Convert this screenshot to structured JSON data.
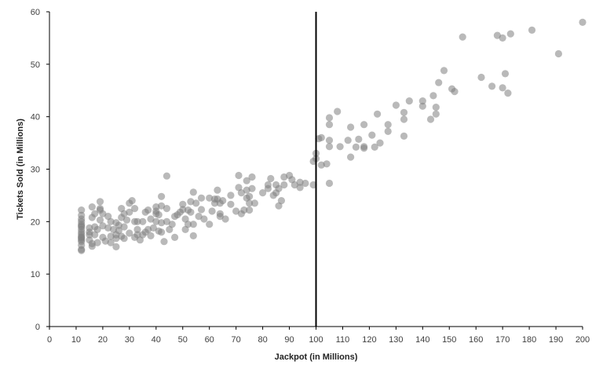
{
  "chart_data": {
    "type": "scatter",
    "title": "",
    "xlabel": "Jackpot (in Millions)",
    "ylabel": "Tickets Sold (in Millions)",
    "xlim": [
      0,
      200
    ],
    "ylim": [
      0,
      60
    ],
    "x_ticks": [
      "0",
      "10",
      "20",
      "30",
      "40",
      "50",
      "60",
      "70",
      "80",
      "90",
      "100",
      "110",
      "120",
      "130",
      "140",
      "150",
      "160",
      "170",
      "180",
      "190",
      "200"
    ],
    "y_ticks": [
      "0",
      "10",
      "20",
      "30",
      "40",
      "50",
      "60"
    ],
    "grid": false,
    "legend": "none",
    "marker_color": "#7f7f7f",
    "reference_line": {
      "x": 100,
      "color": "#000000"
    },
    "points": [
      [
        12,
        14.5
      ],
      [
        12,
        15.5
      ],
      [
        12,
        16.2
      ],
      [
        12,
        16.8
      ],
      [
        12,
        17.2
      ],
      [
        12,
        17.6
      ],
      [
        12,
        18.0
      ],
      [
        12,
        18.5
      ],
      [
        12,
        19.0
      ],
      [
        12,
        19.5
      ],
      [
        12,
        20.0
      ],
      [
        12,
        20.5
      ],
      [
        12,
        21.2
      ],
      [
        12,
        22.2
      ],
      [
        12,
        14.7
      ],
      [
        12,
        16.5
      ],
      [
        12,
        17.0
      ],
      [
        12,
        19.2
      ],
      [
        15,
        17.5
      ],
      [
        15,
        18.0
      ],
      [
        15,
        18.8
      ],
      [
        15,
        16.5
      ],
      [
        16,
        15.3
      ],
      [
        16,
        20.8
      ],
      [
        16,
        22.8
      ],
      [
        16,
        15.8
      ],
      [
        17,
        21.5
      ],
      [
        17,
        19.0
      ],
      [
        17,
        17.5
      ],
      [
        18,
        16.0
      ],
      [
        18,
        18.5
      ],
      [
        19,
        23.8
      ],
      [
        19,
        22.5
      ],
      [
        19,
        20.3
      ],
      [
        19,
        22.2
      ],
      [
        20,
        21.5
      ],
      [
        20,
        19.2
      ],
      [
        20,
        17.0
      ],
      [
        21,
        16.3
      ],
      [
        22,
        18.8
      ],
      [
        22,
        21.0
      ],
      [
        23,
        20.0
      ],
      [
        23,
        17.2
      ],
      [
        23,
        16.0
      ],
      [
        24,
        18.5
      ],
      [
        25,
        15.2
      ],
      [
        25,
        17.5
      ],
      [
        25,
        19.8
      ],
      [
        25,
        16.8
      ],
      [
        26,
        19.3
      ],
      [
        26,
        18.3
      ],
      [
        27,
        22.5
      ],
      [
        27,
        20.8
      ],
      [
        27,
        17.2
      ],
      [
        28,
        21.5
      ],
      [
        28,
        19.0
      ],
      [
        28,
        16.8
      ],
      [
        29,
        20.3
      ],
      [
        30,
        23.5
      ],
      [
        30,
        17.8
      ],
      [
        30,
        21.8
      ],
      [
        31,
        24.0
      ],
      [
        32,
        17.0
      ],
      [
        32,
        20.0
      ],
      [
        32,
        22.5
      ],
      [
        33,
        17.5
      ],
      [
        33,
        20.0
      ],
      [
        33,
        18.5
      ],
      [
        34,
        16.5
      ],
      [
        35,
        20.0
      ],
      [
        35,
        17.5
      ],
      [
        36,
        21.8
      ],
      [
        36,
        18.0
      ],
      [
        37,
        22.2
      ],
      [
        37,
        18.5
      ],
      [
        38,
        20.5
      ],
      [
        38,
        17.3
      ],
      [
        39,
        18.8
      ],
      [
        40,
        21.5
      ],
      [
        40,
        22.0
      ],
      [
        40,
        22.8
      ],
      [
        40,
        20.0
      ],
      [
        41,
        21.3
      ],
      [
        41,
        18.2
      ],
      [
        42,
        24.8
      ],
      [
        42,
        23.0
      ],
      [
        42,
        19.8
      ],
      [
        42,
        18.0
      ],
      [
        43,
        16.2
      ],
      [
        44,
        28.7
      ],
      [
        44,
        22.5
      ],
      [
        44,
        20.0
      ],
      [
        45,
        18.5
      ],
      [
        46,
        19.5
      ],
      [
        47,
        17.0
      ],
      [
        47,
        21.0
      ],
      [
        48,
        21.3
      ],
      [
        49,
        21.8
      ],
      [
        50,
        22.3
      ],
      [
        50,
        23.3
      ],
      [
        51,
        20.5
      ],
      [
        51,
        18.5
      ],
      [
        52,
        22.2
      ],
      [
        52,
        19.5
      ],
      [
        53,
        23.8
      ],
      [
        53,
        21.8
      ],
      [
        54,
        25.6
      ],
      [
        54,
        19.5
      ],
      [
        54,
        17.3
      ],
      [
        55,
        23.5
      ],
      [
        56,
        21.0
      ],
      [
        57,
        22.3
      ],
      [
        57,
        24.5
      ],
      [
        58,
        20.5
      ],
      [
        60,
        24.5
      ],
      [
        60,
        19.5
      ],
      [
        61,
        22.0
      ],
      [
        62,
        24.3
      ],
      [
        62,
        23.5
      ],
      [
        63,
        26.0
      ],
      [
        63,
        24.3
      ],
      [
        64,
        23.5
      ],
      [
        64,
        21.5
      ],
      [
        64,
        21.0
      ],
      [
        65,
        24.0
      ],
      [
        66,
        20.5
      ],
      [
        68,
        25.0
      ],
      [
        68,
        23.3
      ],
      [
        70,
        22.0
      ],
      [
        71,
        28.8
      ],
      [
        71,
        26.5
      ],
      [
        72,
        21.5
      ],
      [
        72,
        25.5
      ],
      [
        73,
        22.2
      ],
      [
        74,
        26.0
      ],
      [
        74,
        24.5
      ],
      [
        74,
        27.8
      ],
      [
        75,
        22.2
      ],
      [
        75,
        23.5
      ],
      [
        75,
        24.8
      ],
      [
        76,
        26.3
      ],
      [
        76,
        28.5
      ],
      [
        77,
        23.5
      ],
      [
        80,
        25.5
      ],
      [
        82,
        27.0
      ],
      [
        82,
        26.3
      ],
      [
        83,
        28.2
      ],
      [
        84,
        25.0
      ],
      [
        85,
        25.5
      ],
      [
        85,
        27.0
      ],
      [
        86,
        26.3
      ],
      [
        86,
        23.0
      ],
      [
        87,
        24.0
      ],
      [
        88,
        27.0
      ],
      [
        88,
        28.5
      ],
      [
        90,
        28.8
      ],
      [
        91,
        28.0
      ],
      [
        92,
        27.0
      ],
      [
        94,
        27.5
      ],
      [
        94,
        26.5
      ],
      [
        96,
        27.3
      ],
      [
        99,
        27.0
      ],
      [
        99,
        31.5
      ],
      [
        100,
        32.0
      ],
      [
        100,
        33.0
      ],
      [
        101,
        35.8
      ],
      [
        102,
        36.0
      ],
      [
        102,
        30.8
      ],
      [
        104,
        31.0
      ],
      [
        105,
        39.8
      ],
      [
        105,
        38.5
      ],
      [
        105,
        35.5
      ],
      [
        105,
        34.3
      ],
      [
        105,
        27.3
      ],
      [
        108,
        41.0
      ],
      [
        109,
        34.3
      ],
      [
        112,
        35.5
      ],
      [
        113,
        38.0
      ],
      [
        113,
        32.3
      ],
      [
        115,
        34.2
      ],
      [
        116,
        35.7
      ],
      [
        118,
        38.5
      ],
      [
        118,
        34.3
      ],
      [
        118,
        34.0
      ],
      [
        121,
        36.5
      ],
      [
        122,
        34.2
      ],
      [
        123,
        40.5
      ],
      [
        124,
        35.0
      ],
      [
        127,
        38.5
      ],
      [
        127,
        37.2
      ],
      [
        130,
        42.2
      ],
      [
        133,
        40.8
      ],
      [
        133,
        39.5
      ],
      [
        133,
        36.3
      ],
      [
        135,
        43.0
      ],
      [
        140,
        42.0
      ],
      [
        140,
        43.0
      ],
      [
        143,
        39.5
      ],
      [
        144,
        44.0
      ],
      [
        145,
        41.8
      ],
      [
        145,
        40.5
      ],
      [
        146,
        46.5
      ],
      [
        148,
        48.8
      ],
      [
        151,
        45.3
      ],
      [
        152,
        44.8
      ],
      [
        155,
        55.2
      ],
      [
        162,
        47.5
      ],
      [
        166,
        45.8
      ],
      [
        168,
        55.5
      ],
      [
        170,
        55.0
      ],
      [
        170,
        45.5
      ],
      [
        171,
        48.2
      ],
      [
        172,
        44.5
      ],
      [
        173,
        55.8
      ],
      [
        181,
        56.5
      ],
      [
        191,
        52.0
      ],
      [
        200,
        58.0
      ]
    ]
  }
}
